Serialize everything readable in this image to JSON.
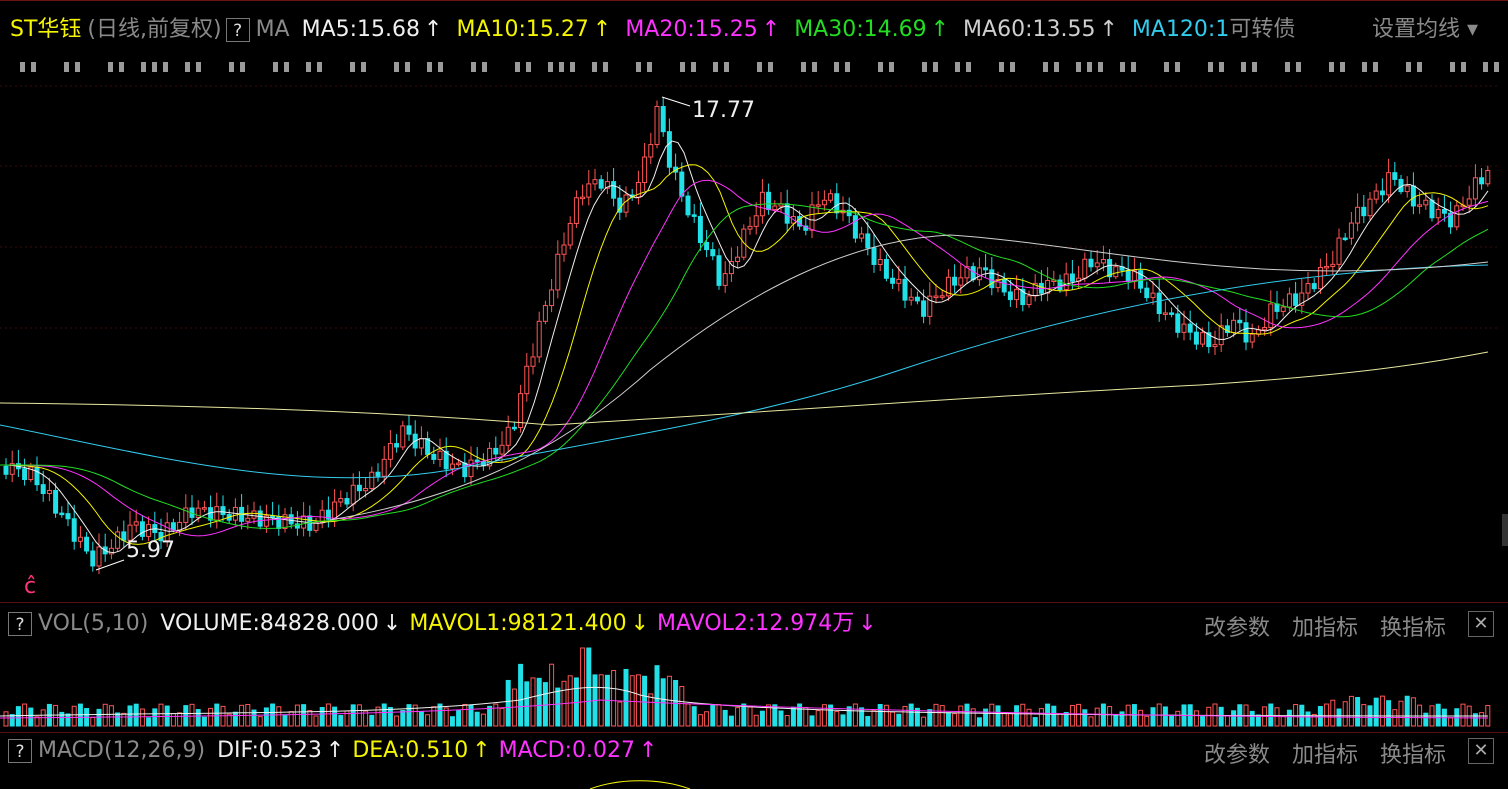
{
  "header": {
    "stock_name": "ST华钰",
    "period": "(日线,前复权)",
    "help": "?",
    "ma_label": "MA",
    "ma": [
      {
        "text": "MA5:15.68",
        "arrow": "↑",
        "color": "#f0f0f0"
      },
      {
        "text": "MA10:15.27",
        "arrow": "↑",
        "color": "#f5f500"
      },
      {
        "text": "MA20:15.25",
        "arrow": "↑",
        "color": "#ff33ff"
      },
      {
        "text": "MA30:14.69",
        "arrow": "↑",
        "color": "#22dd22"
      },
      {
        "text": "MA60:13.55",
        "arrow": "↑",
        "color": "#cfcfcf"
      },
      {
        "text": "MA120:1",
        "arrow": "",
        "color": "#33ccee"
      }
    ],
    "convertible": "可转债",
    "settings": "设置均线 ▾"
  },
  "price_chart": {
    "high_label": "17.77",
    "low_label": "5.97",
    "bottom_icon": "ĉ"
  },
  "volume_panel": {
    "help": "?",
    "name": "VOL(5,10)",
    "volume": "VOLUME:84828.000",
    "volume_arrow": "↓",
    "mavol1": "MAVOL1:98121.400",
    "mavol1_arrow": "↓",
    "mavol2": "MAVOL2:12.974万",
    "mavol2_arrow": "↓",
    "ops": [
      "改参数",
      "加指标",
      "换指标"
    ],
    "close": "✕"
  },
  "macd_panel": {
    "help": "?",
    "name": "MACD(12,26,9)",
    "dif": "DIF:0.523",
    "dif_arrow": "↑",
    "dea": "DEA:0.510",
    "dea_arrow": "↑",
    "macd": "MACD:0.027",
    "macd_arrow": "↑",
    "ops": [
      "改参数",
      "加指标",
      "换指标"
    ],
    "close": "✕"
  },
  "colors": {
    "up": "#ff5555",
    "down": "#22e0e8",
    "ma5": "#f0f0f0",
    "ma10": "#f5f500",
    "ma20": "#ff33ff",
    "ma30": "#22dd22",
    "ma60": "#cfcfcf",
    "ma120": "#33ccee"
  }
}
